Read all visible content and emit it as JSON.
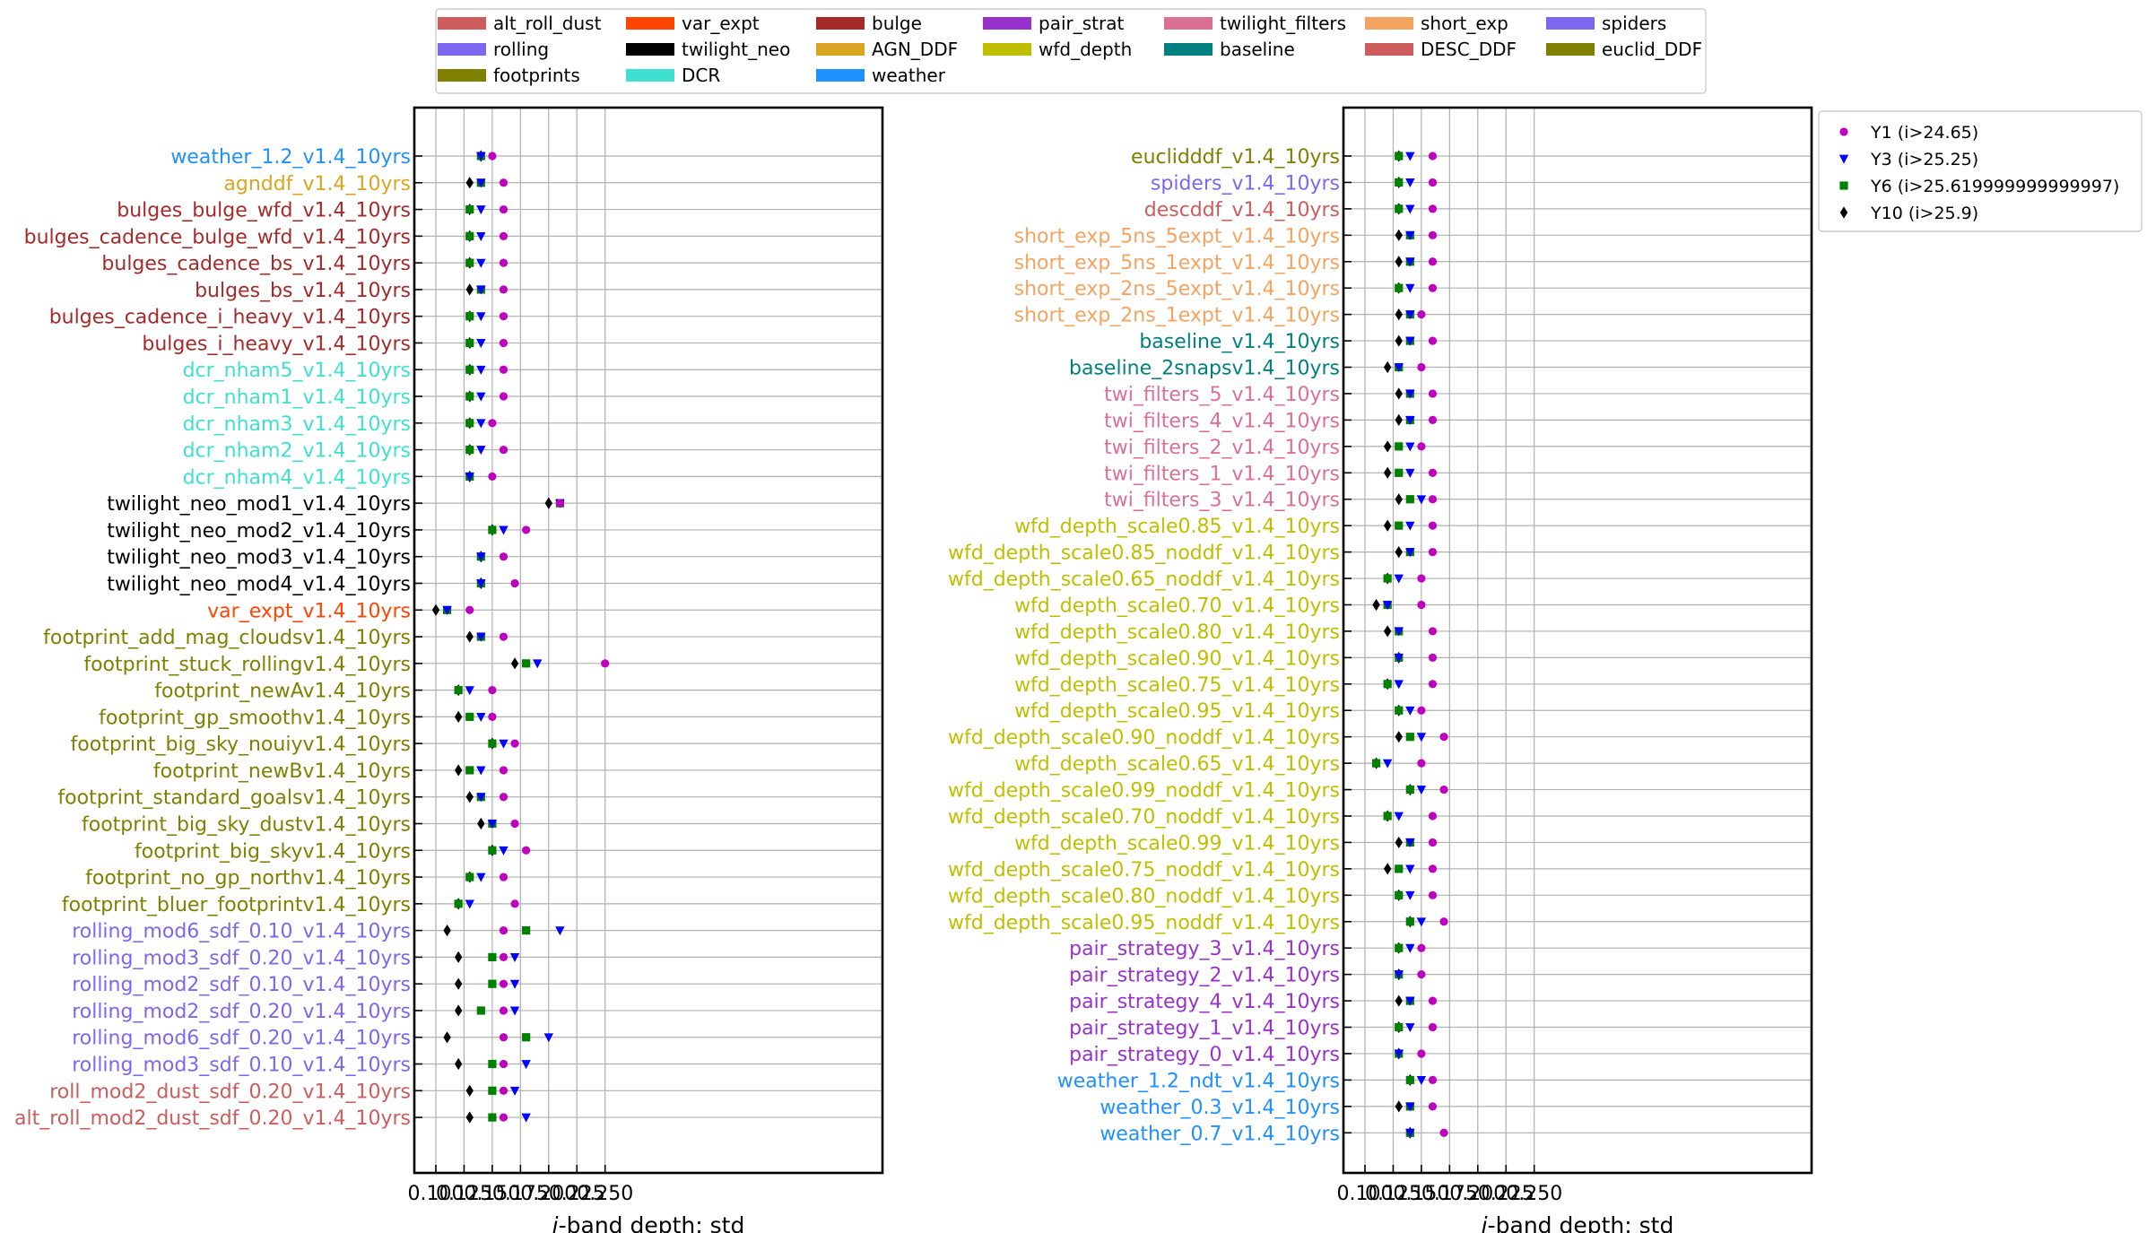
{
  "chart_data": [
    {
      "type": "scatter",
      "xlabel": "i-band depth: std",
      "xlim": [
        0.095,
        0.258
      ],
      "xticks": [
        "0.100",
        "0.125",
        "0.150",
        "0.175",
        "0.200",
        "0.225",
        "0.250"
      ],
      "grid": true,
      "rows": [
        {
          "label": "weather_1.2_v1.4_10yrs",
          "family": "weather",
          "y1": 0.15,
          "y3": 0.14,
          "y6": 0.14,
          "y10": 0.14
        },
        {
          "label": "agnddf_v1.4_10yrs",
          "family": "AGN_DDF",
          "y1": 0.16,
          "y3": 0.14,
          "y6": 0.14,
          "y10": 0.13
        },
        {
          "label": "bulges_bulge_wfd_v1.4_10yrs",
          "family": "bulge",
          "y1": 0.16,
          "y3": 0.14,
          "y6": 0.13,
          "y10": 0.13
        },
        {
          "label": "bulges_cadence_bulge_wfd_v1.4_10yrs",
          "family": "bulge",
          "y1": 0.16,
          "y3": 0.14,
          "y6": 0.13,
          "y10": 0.13
        },
        {
          "label": "bulges_cadence_bs_v1.4_10yrs",
          "family": "bulge",
          "y1": 0.16,
          "y3": 0.14,
          "y6": 0.13,
          "y10": 0.13
        },
        {
          "label": "bulges_bs_v1.4_10yrs",
          "family": "bulge",
          "y1": 0.16,
          "y3": 0.14,
          "y6": 0.14,
          "y10": 0.13
        },
        {
          "label": "bulges_cadence_i_heavy_v1.4_10yrs",
          "family": "bulge",
          "y1": 0.16,
          "y3": 0.14,
          "y6": 0.13,
          "y10": 0.13
        },
        {
          "label": "bulges_i_heavy_v1.4_10yrs",
          "family": "bulge",
          "y1": 0.16,
          "y3": 0.14,
          "y6": 0.13,
          "y10": 0.13
        },
        {
          "label": "dcr_nham5_v1.4_10yrs",
          "family": "DCR",
          "y1": 0.16,
          "y3": 0.14,
          "y6": 0.13,
          "y10": 0.13
        },
        {
          "label": "dcr_nham1_v1.4_10yrs",
          "family": "DCR",
          "y1": 0.16,
          "y3": 0.14,
          "y6": 0.13,
          "y10": 0.13
        },
        {
          "label": "dcr_nham3_v1.4_10yrs",
          "family": "DCR",
          "y1": 0.15,
          "y3": 0.14,
          "y6": 0.13,
          "y10": 0.13
        },
        {
          "label": "dcr_nham2_v1.4_10yrs",
          "family": "DCR",
          "y1": 0.16,
          "y3": 0.14,
          "y6": 0.13,
          "y10": 0.13
        },
        {
          "label": "dcr_nham4_v1.4_10yrs",
          "family": "DCR",
          "y1": 0.15,
          "y3": 0.13,
          "y6": 0.13,
          "y10": 0.13
        },
        {
          "label": "twilight_neo_mod1_v1.4_10yrs",
          "family": "twilight_neo",
          "y1": 0.21,
          "y3": 0.21,
          "y6": 0.21,
          "y10": 0.2
        },
        {
          "label": "twilight_neo_mod2_v1.4_10yrs",
          "family": "twilight_neo",
          "y1": 0.18,
          "y3": 0.16,
          "y6": 0.15,
          "y10": 0.15
        },
        {
          "label": "twilight_neo_mod3_v1.4_10yrs",
          "family": "twilight_neo",
          "y1": 0.16,
          "y3": 0.14,
          "y6": 0.14,
          "y10": 0.14
        },
        {
          "label": "twilight_neo_mod4_v1.4_10yrs",
          "family": "twilight_neo",
          "y1": 0.17,
          "y3": 0.14,
          "y6": 0.14,
          "y10": 0.14
        },
        {
          "label": "var_expt_v1.4_10yrs",
          "family": "var_expt",
          "y1": 0.13,
          "y3": 0.11,
          "y6": 0.11,
          "y10": 0.1
        },
        {
          "label": "footprint_add_mag_cloudsv1.4_10yrs",
          "family": "footprints",
          "y1": 0.16,
          "y3": 0.14,
          "y6": 0.14,
          "y10": 0.13
        },
        {
          "label": "footprint_stuck_rollingv1.4_10yrs",
          "family": "footprints",
          "y1": 0.25,
          "y3": 0.19,
          "y6": 0.18,
          "y10": 0.17
        },
        {
          "label": "footprint_newAv1.4_10yrs",
          "family": "footprints",
          "y1": 0.15,
          "y3": 0.13,
          "y6": 0.12,
          "y10": 0.12
        },
        {
          "label": "footprint_gp_smoothv1.4_10yrs",
          "family": "footprints",
          "y1": 0.15,
          "y3": 0.14,
          "y6": 0.13,
          "y10": 0.12
        },
        {
          "label": "footprint_big_sky_nouiyv1.4_10yrs",
          "family": "footprints",
          "y1": 0.17,
          "y3": 0.16,
          "y6": 0.15,
          "y10": 0.15
        },
        {
          "label": "footprint_newBv1.4_10yrs",
          "family": "footprints",
          "y1": 0.16,
          "y3": 0.14,
          "y6": 0.13,
          "y10": 0.12
        },
        {
          "label": "footprint_standard_goalsv1.4_10yrs",
          "family": "footprints",
          "y1": 0.16,
          "y3": 0.14,
          "y6": 0.14,
          "y10": 0.13
        },
        {
          "label": "footprint_big_sky_dustv1.4_10yrs",
          "family": "footprints",
          "y1": 0.17,
          "y3": 0.15,
          "y6": 0.15,
          "y10": 0.14
        },
        {
          "label": "footprint_big_skyv1.4_10yrs",
          "family": "footprints",
          "y1": 0.18,
          "y3": 0.16,
          "y6": 0.15,
          "y10": 0.15
        },
        {
          "label": "footprint_no_gp_northv1.4_10yrs",
          "family": "footprints",
          "y1": 0.16,
          "y3": 0.14,
          "y6": 0.13,
          "y10": 0.13
        },
        {
          "label": "footprint_bluer_footprintv1.4_10yrs",
          "family": "footprints",
          "y1": 0.17,
          "y3": 0.13,
          "y6": 0.12,
          "y10": 0.12
        },
        {
          "label": "rolling_mod6_sdf_0.10_v1.4_10yrs",
          "family": "rolling",
          "y1": 0.16,
          "y3": 0.21,
          "y6": 0.18,
          "y10": 0.11
        },
        {
          "label": "rolling_mod3_sdf_0.20_v1.4_10yrs",
          "family": "rolling",
          "y1": 0.16,
          "y3": 0.17,
          "y6": 0.15,
          "y10": 0.12
        },
        {
          "label": "rolling_mod2_sdf_0.10_v1.4_10yrs",
          "family": "rolling",
          "y1": 0.16,
          "y3": 0.17,
          "y6": 0.15,
          "y10": 0.12
        },
        {
          "label": "rolling_mod2_sdf_0.20_v1.4_10yrs",
          "family": "rolling",
          "y1": 0.16,
          "y3": 0.17,
          "y6": 0.14,
          "y10": 0.12
        },
        {
          "label": "rolling_mod6_sdf_0.20_v1.4_10yrs",
          "family": "rolling",
          "y1": 0.16,
          "y3": 0.2,
          "y6": 0.18,
          "y10": 0.11
        },
        {
          "label": "rolling_mod3_sdf_0.10_v1.4_10yrs",
          "family": "rolling",
          "y1": 0.16,
          "y3": 0.18,
          "y6": 0.15,
          "y10": 0.12
        },
        {
          "label": "roll_mod2_dust_sdf_0.20_v1.4_10yrs",
          "family": "alt_roll_dust",
          "y1": 0.16,
          "y3": 0.17,
          "y6": 0.15,
          "y10": 0.13
        },
        {
          "label": "alt_roll_mod2_dust_sdf_0.20_v1.4_10yrs",
          "family": "alt_roll_dust",
          "y1": 0.16,
          "y3": 0.18,
          "y6": 0.15,
          "y10": 0.13
        }
      ]
    },
    {
      "type": "scatter",
      "xlabel": "i-band depth: std",
      "xlim": [
        0.095,
        0.258
      ],
      "xticks": [
        "0.100",
        "0.125",
        "0.150",
        "0.175",
        "0.200",
        "0.225",
        "0.250"
      ],
      "grid": true,
      "legend_position": "outside-right",
      "rows": [
        {
          "label": "euclidddf_v1.4_10yrs",
          "family": "euclid_DDF",
          "y1": 0.16,
          "y3": 0.14,
          "y6": 0.13,
          "y10": 0.13
        },
        {
          "label": "spiders_v1.4_10yrs",
          "family": "spiders",
          "y1": 0.16,
          "y3": 0.14,
          "y6": 0.13,
          "y10": 0.13
        },
        {
          "label": "descddf_v1.4_10yrs",
          "family": "DESC_DDF",
          "y1": 0.16,
          "y3": 0.14,
          "y6": 0.13,
          "y10": 0.13
        },
        {
          "label": "short_exp_5ns_5expt_v1.4_10yrs",
          "family": "short_exp",
          "y1": 0.16,
          "y3": 0.14,
          "y6": 0.14,
          "y10": 0.13
        },
        {
          "label": "short_exp_5ns_1expt_v1.4_10yrs",
          "family": "short_exp",
          "y1": 0.16,
          "y3": 0.14,
          "y6": 0.14,
          "y10": 0.13
        },
        {
          "label": "short_exp_2ns_5expt_v1.4_10yrs",
          "family": "short_exp",
          "y1": 0.16,
          "y3": 0.14,
          "y6": 0.13,
          "y10": 0.13
        },
        {
          "label": "short_exp_2ns_1expt_v1.4_10yrs",
          "family": "short_exp",
          "y1": 0.15,
          "y3": 0.14,
          "y6": 0.14,
          "y10": 0.13
        },
        {
          "label": "baseline_v1.4_10yrs",
          "family": "baseline",
          "y1": 0.16,
          "y3": 0.14,
          "y6": 0.14,
          "y10": 0.13
        },
        {
          "label": "baseline_2snapsv1.4_10yrs",
          "family": "baseline",
          "y1": 0.15,
          "y3": 0.13,
          "y6": 0.13,
          "y10": 0.12
        },
        {
          "label": "twi_filters_5_v1.4_10yrs",
          "family": "twilight_filters",
          "y1": 0.16,
          "y3": 0.14,
          "y6": 0.14,
          "y10": 0.13
        },
        {
          "label": "twi_filters_4_v1.4_10yrs",
          "family": "twilight_filters",
          "y1": 0.16,
          "y3": 0.14,
          "y6": 0.14,
          "y10": 0.13
        },
        {
          "label": "twi_filters_2_v1.4_10yrs",
          "family": "twilight_filters",
          "y1": 0.15,
          "y3": 0.14,
          "y6": 0.13,
          "y10": 0.12
        },
        {
          "label": "twi_filters_1_v1.4_10yrs",
          "family": "twilight_filters",
          "y1": 0.16,
          "y3": 0.14,
          "y6": 0.13,
          "y10": 0.12
        },
        {
          "label": "twi_filters_3_v1.4_10yrs",
          "family": "twilight_filters",
          "y1": 0.16,
          "y3": 0.15,
          "y6": 0.14,
          "y10": 0.13
        },
        {
          "label": "wfd_depth_scale0.85_v1.4_10yrs",
          "family": "wfd_depth",
          "y1": 0.16,
          "y3": 0.14,
          "y6": 0.13,
          "y10": 0.12
        },
        {
          "label": "wfd_depth_scale0.85_noddf_v1.4_10yrs",
          "family": "wfd_depth",
          "y1": 0.16,
          "y3": 0.14,
          "y6": 0.14,
          "y10": 0.13
        },
        {
          "label": "wfd_depth_scale0.65_noddf_v1.4_10yrs",
          "family": "wfd_depth",
          "y1": 0.15,
          "y3": 0.13,
          "y6": 0.12,
          "y10": 0.12
        },
        {
          "label": "wfd_depth_scale0.70_v1.4_10yrs",
          "family": "wfd_depth",
          "y1": 0.15,
          "y3": 0.12,
          "y6": 0.12,
          "y10": 0.11
        },
        {
          "label": "wfd_depth_scale0.80_v1.4_10yrs",
          "family": "wfd_depth",
          "y1": 0.16,
          "y3": 0.13,
          "y6": 0.13,
          "y10": 0.12
        },
        {
          "label": "wfd_depth_scale0.90_v1.4_10yrs",
          "family": "wfd_depth",
          "y1": 0.16,
          "y3": 0.13,
          "y6": 0.13,
          "y10": 0.13
        },
        {
          "label": "wfd_depth_scale0.75_v1.4_10yrs",
          "family": "wfd_depth",
          "y1": 0.16,
          "y3": 0.13,
          "y6": 0.12,
          "y10": 0.12
        },
        {
          "label": "wfd_depth_scale0.95_v1.4_10yrs",
          "family": "wfd_depth",
          "y1": 0.15,
          "y3": 0.14,
          "y6": 0.13,
          "y10": 0.13
        },
        {
          "label": "wfd_depth_scale0.90_noddf_v1.4_10yrs",
          "family": "wfd_depth",
          "y1": 0.17,
          "y3": 0.15,
          "y6": 0.14,
          "y10": 0.13
        },
        {
          "label": "wfd_depth_scale0.65_v1.4_10yrs",
          "family": "wfd_depth",
          "y1": 0.15,
          "y3": 0.12,
          "y6": 0.11,
          "y10": 0.11
        },
        {
          "label": "wfd_depth_scale0.99_noddf_v1.4_10yrs",
          "family": "wfd_depth",
          "y1": 0.17,
          "y3": 0.15,
          "y6": 0.14,
          "y10": 0.14
        },
        {
          "label": "wfd_depth_scale0.70_noddf_v1.4_10yrs",
          "family": "wfd_depth",
          "y1": 0.16,
          "y3": 0.13,
          "y6": 0.12,
          "y10": 0.12
        },
        {
          "label": "wfd_depth_scale0.99_v1.4_10yrs",
          "family": "wfd_depth",
          "y1": 0.16,
          "y3": 0.14,
          "y6": 0.14,
          "y10": 0.13
        },
        {
          "label": "wfd_depth_scale0.75_noddf_v1.4_10yrs",
          "family": "wfd_depth",
          "y1": 0.16,
          "y3": 0.14,
          "y6": 0.13,
          "y10": 0.12
        },
        {
          "label": "wfd_depth_scale0.80_noddf_v1.4_10yrs",
          "family": "wfd_depth",
          "y1": 0.16,
          "y3": 0.14,
          "y6": 0.13,
          "y10": 0.13
        },
        {
          "label": "wfd_depth_scale0.95_noddf_v1.4_10yrs",
          "family": "wfd_depth",
          "y1": 0.17,
          "y3": 0.15,
          "y6": 0.14,
          "y10": 0.14
        },
        {
          "label": "pair_strategy_3_v1.4_10yrs",
          "family": "pair_strat",
          "y1": 0.15,
          "y3": 0.14,
          "y6": 0.13,
          "y10": 0.13
        },
        {
          "label": "pair_strategy_2_v1.4_10yrs",
          "family": "pair_strat",
          "y1": 0.15,
          "y3": 0.13,
          "y6": 0.13,
          "y10": 0.13
        },
        {
          "label": "pair_strategy_4_v1.4_10yrs",
          "family": "pair_strat",
          "y1": 0.16,
          "y3": 0.14,
          "y6": 0.14,
          "y10": 0.13
        },
        {
          "label": "pair_strategy_1_v1.4_10yrs",
          "family": "pair_strat",
          "y1": 0.16,
          "y3": 0.14,
          "y6": 0.13,
          "y10": 0.13
        },
        {
          "label": "pair_strategy_0_v1.4_10yrs",
          "family": "pair_strat",
          "y1": 0.15,
          "y3": 0.13,
          "y6": 0.13,
          "y10": 0.13
        },
        {
          "label": "weather_1.2_ndt_v1.4_10yrs",
          "family": "weather",
          "y1": 0.16,
          "y3": 0.15,
          "y6": 0.14,
          "y10": 0.14
        },
        {
          "label": "weather_0.3_v1.4_10yrs",
          "family": "weather",
          "y1": 0.16,
          "y3": 0.14,
          "y6": 0.14,
          "y10": 0.13
        },
        {
          "label": "weather_0.7_v1.4_10yrs",
          "family": "weather",
          "y1": 0.17,
          "y3": 0.14,
          "y6": 0.14,
          "y10": 0.14
        }
      ]
    }
  ],
  "families": [
    {
      "name": "alt_roll_dust",
      "color": "#CD5C5C"
    },
    {
      "name": "var_expt",
      "color": "#FF4500"
    },
    {
      "name": "bulge",
      "color": "#A52A2A"
    },
    {
      "name": "pair_strat",
      "color": "#9932CC"
    },
    {
      "name": "twilight_filters",
      "color": "#DB7093"
    },
    {
      "name": "short_exp",
      "color": "#F4A460"
    },
    {
      "name": "spiders",
      "color": "#7B68EE"
    },
    {
      "name": "rolling",
      "color": "#7B68EE"
    },
    {
      "name": "twilight_neo",
      "color": "#000000"
    },
    {
      "name": "AGN_DDF",
      "color": "#DAA520"
    },
    {
      "name": "wfd_depth",
      "color": "#BFBF00"
    },
    {
      "name": "baseline",
      "color": "#008080"
    },
    {
      "name": "DESC_DDF",
      "color": "#CD5C5C"
    },
    {
      "name": "euclid_DDF",
      "color": "#808000"
    },
    {
      "name": "footprints",
      "color": "#808000"
    },
    {
      "name": "DCR",
      "color": "#40E0D0"
    },
    {
      "name": "weather",
      "color": "#1E90FF"
    }
  ],
  "series": [
    {
      "key": "y1",
      "name": "Y1 (i$>$24.65)",
      "marker": "circle",
      "color": "#BF00BF"
    },
    {
      "key": "y3",
      "name": "Y3 (i$>$25.25)",
      "marker": "triangle-down",
      "color": "#0000FF"
    },
    {
      "key": "y6",
      "name": "Y6 (i$>$25.619999999999997)",
      "marker": "square",
      "color": "#008000"
    },
    {
      "key": "y10",
      "name": "Y10 (i$>$25.9)",
      "marker": "diamond",
      "color": "#000000"
    }
  ]
}
